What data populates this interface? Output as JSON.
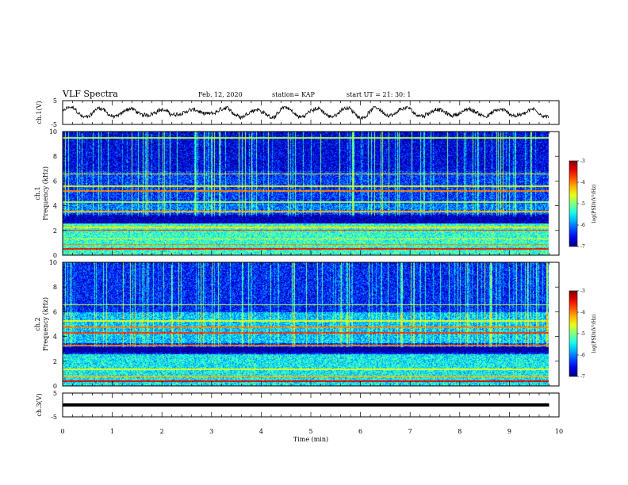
{
  "header": {
    "title": "VLF Spectra",
    "date": "Feb. 12, 2020",
    "station": "station= KAP",
    "start_time": "start  UT =   21: 30: 1"
  },
  "chart_data": [
    {
      "type": "line",
      "panel": "ch1-waveform",
      "ylabel": "ch.1(V)",
      "ylim": [
        -5,
        5
      ],
      "yticks": [
        "5",
        "-5"
      ],
      "xlim": [
        0,
        10
      ],
      "description_of_trace": "noisy quasi-periodic waveform, amplitude about +/-2.5 V",
      "y_range_observed": [
        -2.8,
        2.5
      ],
      "x_end_min": 9.8,
      "color": "#000000"
    },
    {
      "type": "heatmap",
      "panel": "ch1-spectrogram",
      "ylabel": "ch.1 Frequency (kHz)",
      "ylim": [
        0,
        10
      ],
      "yticks": [
        "0",
        "2",
        "4",
        "6",
        "8",
        "10"
      ],
      "xlim": [
        0,
        10
      ],
      "x_end_min": 9.8,
      "bands_khz": [
        {
          "f": 0.55,
          "level": -3.5
        },
        {
          "f": 0.9,
          "level": -4.0
        },
        {
          "f": 1.35,
          "level": -4.6
        },
        {
          "f": 2.05,
          "level": -3.6
        },
        {
          "f": 2.3,
          "level": -4.4
        },
        {
          "f": 3.55,
          "level": -4.2
        },
        {
          "f": 4.35,
          "level": -4.8
        },
        {
          "f": 5.25,
          "level": -4.0
        },
        {
          "f": 5.6,
          "level": -4.5
        },
        {
          "f": 6.6,
          "level": -4.4
        },
        {
          "f": 9.5,
          "level": -4.8
        }
      ],
      "colorbar": {
        "label": "log(PSD)(V²/Hz)",
        "range": [
          -7,
          -3
        ],
        "ticks": [
          "-3",
          "-4",
          "-5",
          "-6",
          "-7"
        ]
      }
    },
    {
      "type": "heatmap",
      "panel": "ch2-spectrogram",
      "ylabel": "ch.2 Frequency (kHz)",
      "ylim": [
        0,
        10
      ],
      "yticks": [
        "0",
        "2",
        "4",
        "6",
        "8",
        "10"
      ],
      "xlim": [
        0,
        10
      ],
      "x_end_min": 9.8,
      "bands_khz": [
        {
          "f": 0.4,
          "level": -3.4
        },
        {
          "f": 0.8,
          "level": -4.2
        },
        {
          "f": 1.4,
          "level": -4.6
        },
        {
          "f": 3.3,
          "level": -4.0
        },
        {
          "f": 4.3,
          "level": -3.7
        },
        {
          "f": 4.8,
          "level": -4.0
        },
        {
          "f": 5.3,
          "level": -4.6
        },
        {
          "f": 6.6,
          "level": -4.7
        }
      ],
      "colorbar": {
        "label": "log(PSD)(V²/Hz)",
        "range": [
          -7,
          -3
        ],
        "ticks": [
          "-3",
          "-4",
          "-5",
          "-6",
          "-7"
        ]
      }
    },
    {
      "type": "line",
      "panel": "ch3-waveform",
      "ylabel": "ch.3(V)",
      "ylim": [
        -5,
        5
      ],
      "yticks": [
        "5",
        "-5"
      ],
      "xlim": [
        0,
        10
      ],
      "x_end_min": 9.8,
      "constant_value": 0,
      "color": "#000000"
    }
  ],
  "x_axis": {
    "label": "Time  (min)",
    "ticks": [
      "0",
      "1",
      "2",
      "3",
      "4",
      "5",
      "6",
      "7",
      "8",
      "9",
      "10"
    ]
  }
}
